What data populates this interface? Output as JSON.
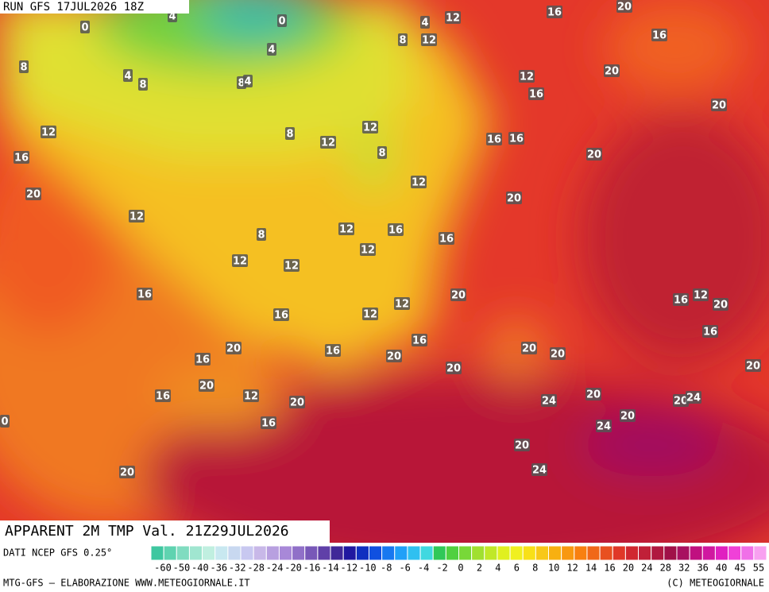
{
  "header": {
    "run": "RUN GFS 17JUL2026 18Z"
  },
  "map": {
    "title": "APPARENT 2M TMP Val. 21Z29JUL2026",
    "contour_labels": [
      "0",
      "4",
      "0",
      "4",
      "12",
      "16",
      "20",
      "8",
      "4",
      "8",
      "12",
      "16",
      "4",
      "8",
      "8",
      "4",
      "12",
      "20",
      "16",
      "20",
      "12",
      "8",
      "12",
      "12",
      "16",
      "16",
      "8",
      "16",
      "20",
      "12",
      "20",
      "20",
      "12",
      "12",
      "16",
      "8",
      "16",
      "12",
      "12",
      "12",
      "16",
      "20",
      "16",
      "12",
      "20",
      "12",
      "16",
      "12",
      "16",
      "20",
      "16",
      "16",
      "20",
      "20",
      "20",
      "16",
      "20",
      "20",
      "20",
      "16",
      "12",
      "20",
      "20",
      "20",
      "24",
      "24",
      "20",
      "16",
      "24",
      "20",
      "20",
      "24",
      "0"
    ]
  },
  "legend": {
    "source": "DATI NCEP GFS 0.25°",
    "colors": [
      "#3fc7a0",
      "#5fd3b0",
      "#80dcc0",
      "#a0e6d0",
      "#c0efe0",
      "#c8e8f0",
      "#c8d8f0",
      "#c8c8f0",
      "#c8b8e8",
      "#b8a0e0",
      "#a888d8",
      "#9070c8",
      "#7858b8",
      "#6040a8",
      "#402898",
      "#2018a0",
      "#1030c0",
      "#1050e0",
      "#1878f0",
      "#20a0f8",
      "#30c0f0",
      "#40d8e0",
      "#30c858",
      "#50d040",
      "#78d838",
      "#a0e030",
      "#c0e828",
      "#e0f020",
      "#f0f020",
      "#f8e018",
      "#f8c818",
      "#f8b010",
      "#f89810",
      "#f88010",
      "#f06818",
      "#e85020",
      "#e03828",
      "#d02830",
      "#c02038",
      "#b01840",
      "#a01048",
      "#a81060",
      "#c01080",
      "#d018a0",
      "#e020c0",
      "#f040d8",
      "#f070e8",
      "#f8a0f0"
    ],
    "ticks": [
      "-60",
      "-50",
      "-40",
      "-36",
      "-32",
      "-28",
      "-24",
      "-20",
      "-16",
      "-14",
      "-12",
      "-10",
      "-8",
      "-6",
      "-4",
      "-2",
      "0",
      "2",
      "4",
      "6",
      "8",
      "10",
      "12",
      "14",
      "16",
      "20",
      "24",
      "28",
      "32",
      "36",
      "40",
      "45",
      "55"
    ]
  },
  "footer": {
    "left": "MTG-GFS — ELABORAZIONE WWW.METEOGIORNALE.IT",
    "right": "(C) METEOGIORNALE"
  }
}
